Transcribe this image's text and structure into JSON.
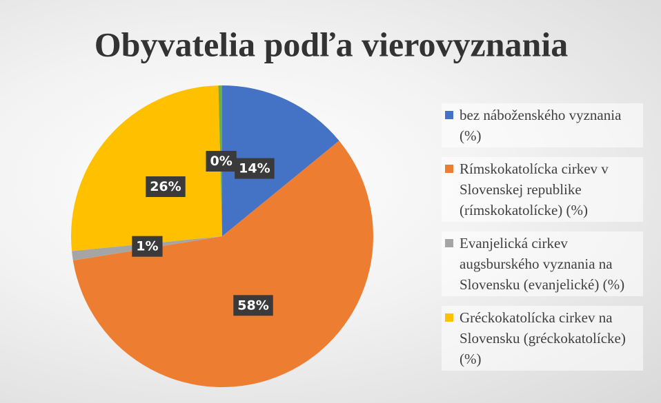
{
  "chart_data": {
    "type": "pie",
    "title": "Obyvatelia podľa vierovyznania",
    "categories": [
      "bez náboženského vyznania (%)",
      "Rímskokatolícka cirkev v Slovenskej republike (rímskokatolícke) (%)",
      "Evanjelická cirkev augsburského vyznania na Slovensku (evanjelické) (%)",
      "Gréckokatolícka cirkev na Slovensku (gréckokatolícke) (%)",
      null
    ],
    "values": [
      14,
      58,
      1,
      26,
      0.4
    ],
    "value_labels": [
      "14%",
      "58%",
      "1%",
      "26%",
      "0%"
    ],
    "colors": [
      "#4472c4",
      "#ed7d31",
      "#a5a5a5",
      "#ffc000",
      "#70ad47"
    ],
    "legend": "right"
  }
}
